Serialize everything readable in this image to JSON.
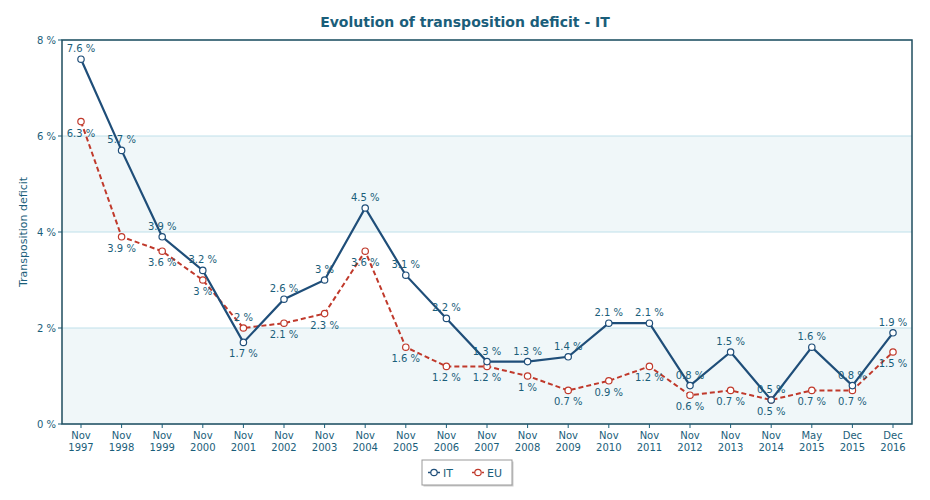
{
  "chart_data": {
    "type": "line",
    "title": "Evolution of transposition deficit - IT",
    "y_label": "Transposition deficit",
    "categories": [
      "Nov 1997",
      "Nov 1998",
      "Nov 1999",
      "Nov 2000",
      "Nov 2001",
      "Nov 2002",
      "Nov 2003",
      "Nov 2004",
      "Nov 2005",
      "Nov 2006",
      "Nov 2007",
      "Nov 2008",
      "Nov 2009",
      "Nov 2010",
      "Nov 2011",
      "Nov 2012",
      "Nov 2013",
      "Nov 2014",
      "May 2015",
      "Dec 2015",
      "Dec 2016"
    ],
    "series": [
      {
        "name": "IT",
        "color": "#1f4e79",
        "line_style": "solid",
        "marker": "circle",
        "values": [
          7.6,
          5.7,
          3.9,
          3.2,
          1.7,
          2.6,
          3,
          4.5,
          3.1,
          2.2,
          1.3,
          1.3,
          1.4,
          2.1,
          2.1,
          0.8,
          1.5,
          0.5,
          1.6,
          0.8,
          1.9
        ],
        "value_labels": [
          "7.6 %",
          "5.7 %",
          "3.9 %",
          "3.2 %",
          "1.7 %",
          "2.6 %",
          "3 %",
          "4.5 %",
          "3.1 %",
          "2.2 %",
          "1.3 %",
          "1.3 %",
          "1.4 %",
          "2.1 %",
          "2.1 %",
          "0.8 %",
          "1.5 %",
          "0.5 %",
          "1.6 %",
          "0.8 %",
          "1.9 %"
        ]
      },
      {
        "name": "EU",
        "color": "#c0392b",
        "line_style": "dashed",
        "marker": "circle",
        "values": [
          6.3,
          3.9,
          3.6,
          3,
          2,
          2.1,
          2.3,
          3.6,
          1.6,
          1.2,
          1.2,
          1,
          0.7,
          0.9,
          1.2,
          0.6,
          0.7,
          0.5,
          0.7,
          0.7,
          1.5
        ],
        "value_labels": [
          "6.3 %",
          "3.9 %",
          "3.6 %",
          "3 %",
          "2 %",
          "2.1 %",
          "2.3 %",
          "3.6 %",
          "1.6 %",
          "1.2 %",
          "1.2 %",
          "1 %",
          "0.7 %",
          "0.9 %",
          "1.2 %",
          "0.6 %",
          "0.7 %",
          "0.5 %",
          "0.7 %",
          "0.7 %",
          "1.5 %"
        ]
      }
    ],
    "ylim": [
      0,
      8
    ],
    "yticks": [
      {
        "value": 0,
        "label": "0 %"
      },
      {
        "value": 2,
        "label": "2 %"
      },
      {
        "value": 4,
        "label": "4 %"
      },
      {
        "value": 6,
        "label": "6 %"
      },
      {
        "value": 8,
        "label": "8 %"
      }
    ],
    "grid": true,
    "legend": "bottom",
    "data_labels": true
  }
}
